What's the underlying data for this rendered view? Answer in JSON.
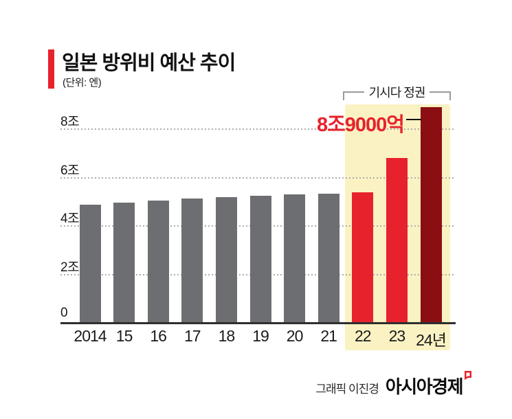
{
  "header": {
    "title": "일본 방위비 예산 추이",
    "unit": "(단위: 엔)",
    "accent_color": "#E8222D"
  },
  "chart_data": {
    "type": "bar",
    "title": "일본 방위비 예산 추이",
    "unit_label": "(단위: 엔)",
    "categories": [
      "2014",
      "15",
      "16",
      "17",
      "18",
      "19",
      "20",
      "21",
      "22",
      "23",
      "24년"
    ],
    "values": [
      4.88,
      4.98,
      5.05,
      5.13,
      5.19,
      5.26,
      5.31,
      5.34,
      5.4,
      6.8,
      8.9
    ],
    "value_unit": "조(trillion yen)",
    "bar_color_keys": [
      "gray",
      "gray",
      "gray",
      "gray",
      "gray",
      "gray",
      "gray",
      "gray",
      "red",
      "red",
      "darkred"
    ],
    "colors": {
      "gray": "#6D6E72",
      "red": "#E8222D",
      "darkred": "#8B0E13"
    },
    "yticks": [
      {
        "label": "0",
        "value": 0
      },
      {
        "label": "2조",
        "value": 2
      },
      {
        "label": "4조",
        "value": 4
      },
      {
        "label": "6조",
        "value": 6
      },
      {
        "label": "8조",
        "value": 8
      }
    ],
    "ylim": [
      0,
      9.3
    ],
    "grid": "horizontal dotted",
    "legend": "none",
    "highlight": {
      "label": "기시다 정권",
      "categories": [
        "22",
        "23",
        "24년"
      ],
      "background": "#FAF2C3"
    },
    "annotation": {
      "text": "8조9000억",
      "target_category": "24년",
      "color": "#E8222D"
    }
  },
  "footer": {
    "credit": "그래픽 이진경",
    "brand": "아시아경제"
  }
}
